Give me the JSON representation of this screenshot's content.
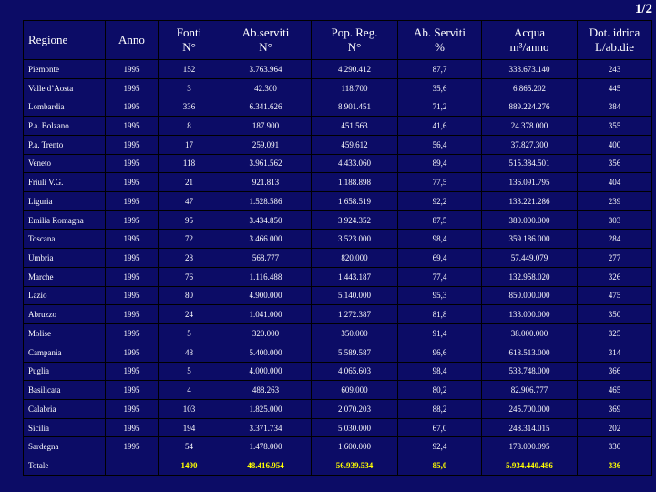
{
  "page_number": "1/2",
  "table": {
    "headers": [
      {
        "line1": "Regione",
        "line2": ""
      },
      {
        "line1": "Anno",
        "line2": ""
      },
      {
        "line1": "Fonti",
        "line2": "N°"
      },
      {
        "line1": "Ab.serviti",
        "line2": "N°"
      },
      {
        "line1": "Pop. Reg.",
        "line2": "N°"
      },
      {
        "line1": "Ab. Serviti",
        "line2": "%"
      },
      {
        "line1": "Acqua",
        "line2": "m³/anno"
      },
      {
        "line1": "Dot. idrica",
        "line2": "L/ab.die"
      }
    ],
    "rows": [
      [
        "Piemonte",
        "1995",
        "152",
        "3.763.964",
        "4.290.412",
        "87,7",
        "333.673.140",
        "243"
      ],
      [
        "Valle d’Aosta",
        "1995",
        "3",
        "42.300",
        "118.700",
        "35,6",
        "6.865.202",
        "445"
      ],
      [
        "Lombardia",
        "1995",
        "336",
        "6.341.626",
        "8.901.451",
        "71,2",
        "889.224.276",
        "384"
      ],
      [
        "P.a. Bolzano",
        "1995",
        "8",
        "187.900",
        "451.563",
        "41,6",
        "24.378.000",
        "355"
      ],
      [
        "P.a. Trento",
        "1995",
        "17",
        "259.091",
        "459.612",
        "56,4",
        "37.827.300",
        "400"
      ],
      [
        "Veneto",
        "1995",
        "118",
        "3.961.562",
        "4.433.060",
        "89,4",
        "515.384.501",
        "356"
      ],
      [
        "Friuli V.G.",
        "1995",
        "21",
        "921.813",
        "1.188.898",
        "77,5",
        "136.091.795",
        "404"
      ],
      [
        "Liguria",
        "1995",
        "47",
        "1.528.586",
        "1.658.519",
        "92,2",
        "133.221.286",
        "239"
      ],
      [
        "Emilia Romagna",
        "1995",
        "95",
        "3.434.850",
        "3.924.352",
        "87,5",
        "380.000.000",
        "303"
      ],
      [
        "Toscana",
        "1995",
        "72",
        "3.466.000",
        "3.523.000",
        "98,4",
        "359.186.000",
        "284"
      ],
      [
        "Umbria",
        "1995",
        "28",
        "568.777",
        "820.000",
        "69,4",
        "57.449.079",
        "277"
      ],
      [
        "Marche",
        "1995",
        "76",
        "1.116.488",
        "1.443.187",
        "77,4",
        "132.958.020",
        "326"
      ],
      [
        "Lazio",
        "1995",
        "80",
        "4.900.000",
        "5.140.000",
        "95,3",
        "850.000.000",
        "475"
      ],
      [
        "Abruzzo",
        "1995",
        "24",
        "1.041.000",
        "1.272.387",
        "81,8",
        "133.000.000",
        "350"
      ],
      [
        "Molise",
        "1995",
        "5",
        "320.000",
        "350.000",
        "91,4",
        "38.000.000",
        "325"
      ],
      [
        "Campania",
        "1995",
        "48",
        "5.400.000",
        "5.589.587",
        "96,6",
        "618.513.000",
        "314"
      ],
      [
        "Puglia",
        "1995",
        "5",
        "4.000.000",
        "4.065.603",
        "98,4",
        "533.748.000",
        "366"
      ],
      [
        "Basilicata",
        "1995",
        "4",
        "488.263",
        "609.000",
        "80,2",
        "82.906.777",
        "465"
      ],
      [
        "Calabria",
        "1995",
        "103",
        "1.825.000",
        "2.070.203",
        "88,2",
        "245.700.000",
        "369"
      ],
      [
        "Sicilia",
        "1995",
        "194",
        "3.371.734",
        "5.030.000",
        "67,0",
        "248.314.015",
        "202"
      ],
      [
        "Sardegna",
        "1995",
        "54",
        "1.478.000",
        "1.600.000",
        "92,4",
        "178.000.095",
        "330"
      ]
    ],
    "total": [
      "Totale",
      "",
      "1490",
      "48.416.954",
      "56.939.534",
      "85,0",
      "5.934.440.486",
      "336"
    ]
  }
}
